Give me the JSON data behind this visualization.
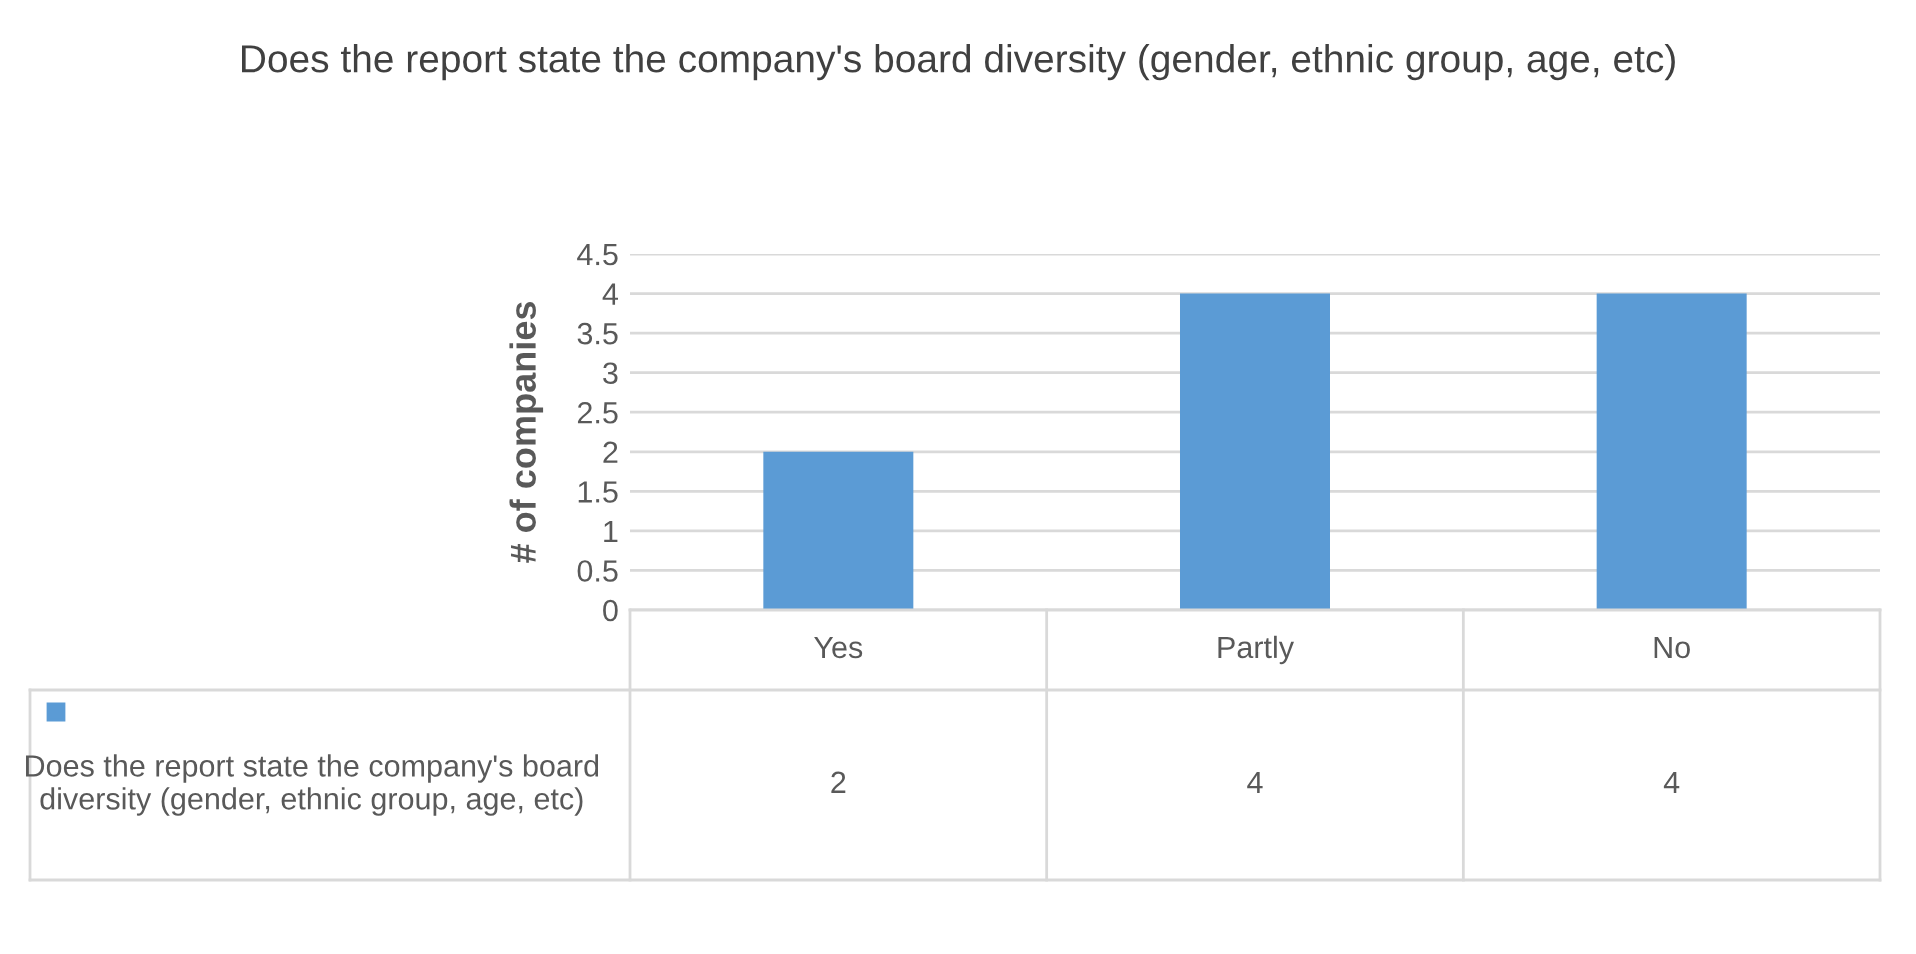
{
  "chart_data": {
    "type": "bar",
    "title": "Does the report state the company's board diversity (gender, ethnic group, age, etc)",
    "ylabel": "# of companies",
    "categories": [
      "Yes",
      "Partly",
      "No"
    ],
    "series": [
      {
        "name": "Does the report state the company's board diversity (gender, ethnic group, age, etc)",
        "color": "#5b9bd5",
        "values": [
          2,
          4,
          4
        ]
      }
    ],
    "ylim": [
      0,
      4.5
    ],
    "yticks": [
      0,
      0.5,
      1,
      1.5,
      2,
      2.5,
      3,
      3.5,
      4,
      4.5
    ],
    "grid": "y",
    "legend": "bottom left",
    "data_labels": true
  }
}
